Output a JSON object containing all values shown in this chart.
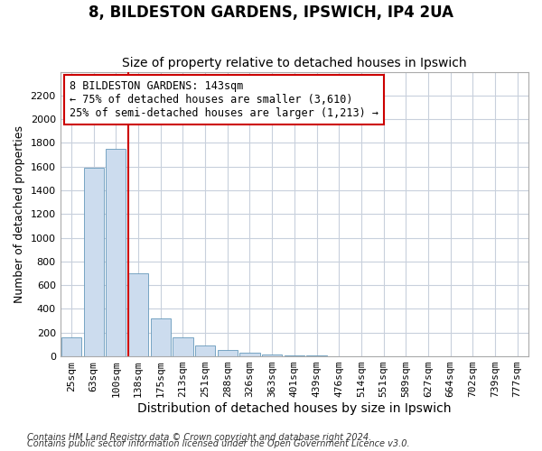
{
  "title": "8, BILDESTON GARDENS, IPSWICH, IP4 2UA",
  "subtitle": "Size of property relative to detached houses in Ipswich",
  "xlabel": "Distribution of detached houses by size in Ipswich",
  "ylabel": "Number of detached properties",
  "footnote1": "Contains HM Land Registry data © Crown copyright and database right 2024.",
  "footnote2": "Contains public sector information licensed under the Open Government Licence v3.0.",
  "bar_color": "#ccdcee",
  "bar_edge_color": "#6699bb",
  "bg_color": "#ffffff",
  "axes_bg_color": "#ffffff",
  "grid_color": "#c8d0dc",
  "vline_color": "#cc0000",
  "annotation_text": "8 BILDESTON GARDENS: 143sqm\n← 75% of detached houses are smaller (3,610)\n25% of semi-detached houses are larger (1,213) →",
  "categories": [
    "25sqm",
    "63sqm",
    "100sqm",
    "138sqm",
    "175sqm",
    "213sqm",
    "251sqm",
    "288sqm",
    "326sqm",
    "363sqm",
    "401sqm",
    "439sqm",
    "476sqm",
    "514sqm",
    "551sqm",
    "589sqm",
    "627sqm",
    "664sqm",
    "702sqm",
    "739sqm",
    "777sqm"
  ],
  "values": [
    160,
    1590,
    1750,
    700,
    320,
    160,
    90,
    55,
    30,
    18,
    10,
    5,
    3,
    0,
    0,
    0,
    0,
    0,
    0,
    0,
    0
  ],
  "ylim": [
    0,
    2400
  ],
  "yticks": [
    0,
    200,
    400,
    600,
    800,
    1000,
    1200,
    1400,
    1600,
    1800,
    2000,
    2200
  ],
  "property_bar_index": 3,
  "title_fontsize": 12,
  "subtitle_fontsize": 10,
  "xlabel_fontsize": 10,
  "ylabel_fontsize": 9,
  "tick_fontsize": 8,
  "annotation_fontsize": 8.5,
  "footnote_fontsize": 7
}
